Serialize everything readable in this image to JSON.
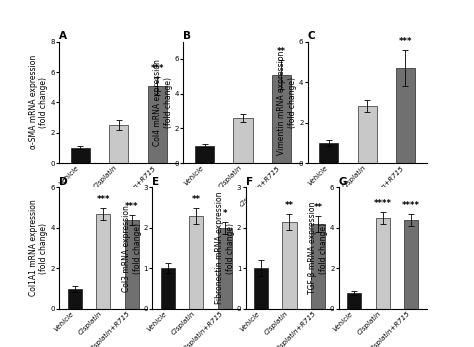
{
  "chart_data": [
    {
      "type": "bar",
      "title": "A",
      "y_label": "α-SMA mRNA expression\n(fold change)",
      "categories": [
        "Vehicle",
        "Cisplatin",
        "Cisplatin+R715"
      ],
      "values": [
        1.0,
        2.5,
        5.1
      ],
      "errors": [
        0.1,
        0.35,
        0.6
      ],
      "colors": [
        "#111111",
        "#c8c8c8",
        "#707070"
      ],
      "ylim": [
        0,
        8
      ],
      "yticks": [
        0,
        2,
        4,
        6,
        8
      ],
      "annotations": [
        {
          "category": "Cisplatin+R715",
          "text": "***"
        }
      ]
    },
    {
      "type": "bar",
      "title": "B",
      "y_label": "Col4 mRNA expression\n(fold change)",
      "categories": [
        "Vehicle",
        "Cisplatin",
        "Cisplatin+R715"
      ],
      "values": [
        1.0,
        2.6,
        5.1
      ],
      "errors": [
        0.1,
        0.25,
        0.85
      ],
      "colors": [
        "#111111",
        "#c8c8c8",
        "#707070"
      ],
      "ylim": [
        0,
        7
      ],
      "yticks": [
        0,
        2,
        4,
        6
      ],
      "annotations": [
        {
          "category": "Cisplatin+R715",
          "text": "**"
        }
      ]
    },
    {
      "type": "bar",
      "title": "C",
      "y_label": "Vimentin mRNA expression\n(fold change)",
      "categories": [
        "Vehicle",
        "Cisplatin",
        "Cisplatin+R715"
      ],
      "values": [
        1.0,
        2.8,
        4.7
      ],
      "errors": [
        0.15,
        0.3,
        0.9
      ],
      "colors": [
        "#111111",
        "#c8c8c8",
        "#707070"
      ],
      "ylim": [
        0,
        6
      ],
      "yticks": [
        0,
        2,
        4,
        6
      ],
      "annotations": [
        {
          "category": "Cisplatin+R715",
          "text": "***"
        }
      ]
    },
    {
      "type": "bar",
      "title": "D",
      "y_label": "Col1A1 mRNA expression\n(fold change)",
      "categories": [
        "Vehicle",
        "Cisplatin",
        "Cisplatin+R715"
      ],
      "values": [
        1.0,
        4.7,
        4.4
      ],
      "errors": [
        0.15,
        0.3,
        0.25
      ],
      "colors": [
        "#111111",
        "#c8c8c8",
        "#707070"
      ],
      "ylim": [
        0,
        6
      ],
      "yticks": [
        0,
        2,
        4,
        6
      ],
      "annotations": [
        {
          "category": "Cisplatin",
          "text": "***"
        },
        {
          "category": "Cisplatin+R715",
          "text": "***"
        }
      ]
    },
    {
      "type": "bar",
      "title": "E",
      "y_label": "Col3 mRNA expression\n(fold change)",
      "categories": [
        "Vehicle",
        "Cisplatin",
        "Cisplatin+R715"
      ],
      "values": [
        1.0,
        2.3,
        2.0
      ],
      "errors": [
        0.12,
        0.2,
        0.15
      ],
      "colors": [
        "#111111",
        "#c8c8c8",
        "#707070"
      ],
      "ylim": [
        0,
        3
      ],
      "yticks": [
        0,
        1,
        2,
        3
      ],
      "annotations": [
        {
          "category": "Cisplatin",
          "text": "**"
        },
        {
          "category": "Cisplatin+R715",
          "text": "*"
        }
      ]
    },
    {
      "type": "bar",
      "title": "F",
      "y_label": "Fibronectin mRNA expression\n(fold change)",
      "categories": [
        "Vehicle",
        "Cisplatin",
        "Cisplatin+R715"
      ],
      "values": [
        1.0,
        2.15,
        2.1
      ],
      "errors": [
        0.2,
        0.2,
        0.2
      ],
      "colors": [
        "#111111",
        "#c8c8c8",
        "#707070"
      ],
      "ylim": [
        0,
        3
      ],
      "yticks": [
        0,
        1,
        2,
        3
      ],
      "annotations": [
        {
          "category": "Cisplatin",
          "text": "**"
        },
        {
          "category": "Cisplatin+R715",
          "text": "**"
        }
      ]
    },
    {
      "type": "bar",
      "title": "G",
      "y_label": "TGF-β mRNA expression\n(fold change)",
      "categories": [
        "Vehicle",
        "Cisplatin",
        "Cisplatin+R715"
      ],
      "values": [
        0.8,
        4.5,
        4.4
      ],
      "errors": [
        0.1,
        0.3,
        0.3
      ],
      "colors": [
        "#111111",
        "#c8c8c8",
        "#707070"
      ],
      "ylim": [
        0,
        6
      ],
      "yticks": [
        0,
        2,
        4,
        6
      ],
      "annotations": [
        {
          "category": "Cisplatin",
          "text": "****"
        },
        {
          "category": "Cisplatin+R715",
          "text": "****"
        }
      ]
    }
  ]
}
